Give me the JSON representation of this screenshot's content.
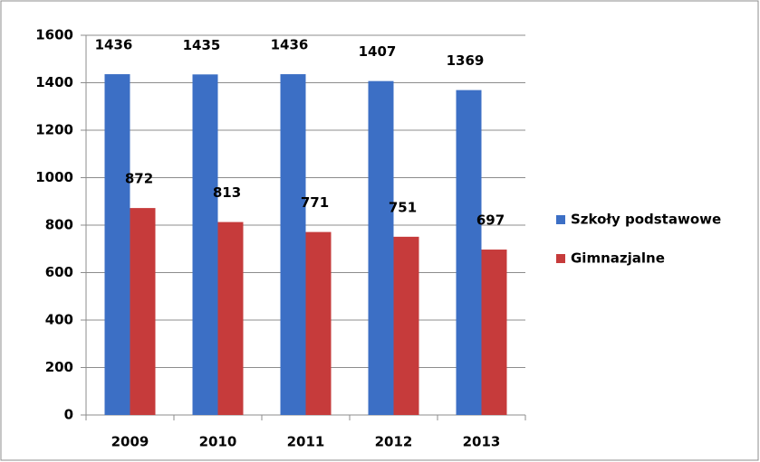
{
  "chart_data": {
    "type": "bar",
    "categories": [
      "2009",
      "2010",
      "2011",
      "2012",
      "2013"
    ],
    "series": [
      {
        "name": "Szkoły podstawowe",
        "color": "#3c6fc5",
        "values": [
          1436,
          1435,
          1436,
          1407,
          1369
        ]
      },
      {
        "name": "Gimnazjalne",
        "color": "#c63b3b",
        "values": [
          872,
          813,
          771,
          751,
          697
        ]
      }
    ],
    "ylim": [
      0,
      1600
    ],
    "yticks": [
      0,
      200,
      400,
      600,
      800,
      1000,
      1200,
      1400,
      1600
    ],
    "grid": true,
    "legend": "right"
  }
}
